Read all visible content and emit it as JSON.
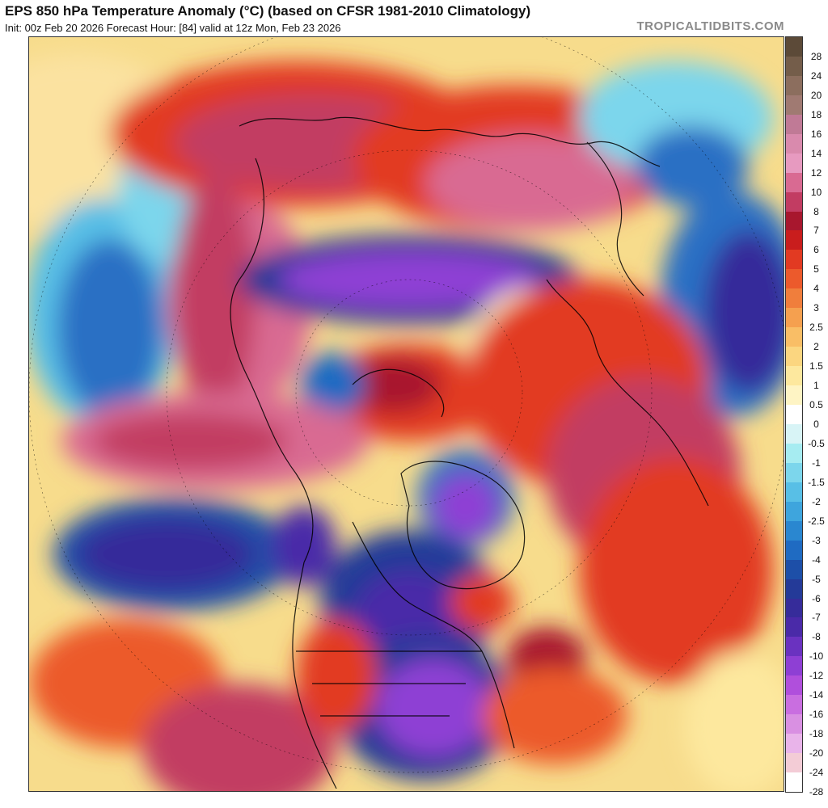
{
  "header": {
    "title": "EPS 850 hPa Temperature Anomaly (°C) (based on CFSR 1981-2010 Climatology)",
    "subtitle": "Init: 00z Feb 20 2026   Forecast Hour: [84]   valid at 12z Mon, Feb 23 2026",
    "credit": "TROPICALTIDBITS.COM"
  },
  "colorbar": {
    "labels": [
      "28",
      "24",
      "20",
      "18",
      "16",
      "14",
      "12",
      "10",
      "8",
      "7",
      "6",
      "5",
      "4",
      "3",
      "2.5",
      "2",
      "1.5",
      "1",
      "0.5",
      "0",
      "-0.5",
      "-1",
      "-1.5",
      "-2",
      "-2.5",
      "-3",
      "-4",
      "-5",
      "-6",
      "-7",
      "-8",
      "-10",
      "-12",
      "-14",
      "-16",
      "-18",
      "-20",
      "-24",
      "-28"
    ],
    "colors": [
      "#5c4a38",
      "#745d4a",
      "#8c6e5e",
      "#a07a72",
      "#c07a96",
      "#d98aad",
      "#e79ac0",
      "#d96a92",
      "#c23c62",
      "#a8172e",
      "#c91d1d",
      "#e23a22",
      "#ec5a2c",
      "#f07e3c",
      "#f5a04f",
      "#f9be66",
      "#fbd680",
      "#fde89e",
      "#fef4c4",
      "#ffffff",
      "#d8f4f6",
      "#a6ecf1",
      "#7cd6ec",
      "#58bfe6",
      "#3ea5dd",
      "#2a87d0",
      "#1f6bc2",
      "#1d4fa8",
      "#243a98",
      "#362c9a",
      "#4a2aa8",
      "#6a32c0",
      "#8e3fd4",
      "#b04fdc",
      "#c96ee0",
      "#d990e2",
      "#e9b4ea",
      "#f3ccd6",
      "#ffffff"
    ]
  }
}
